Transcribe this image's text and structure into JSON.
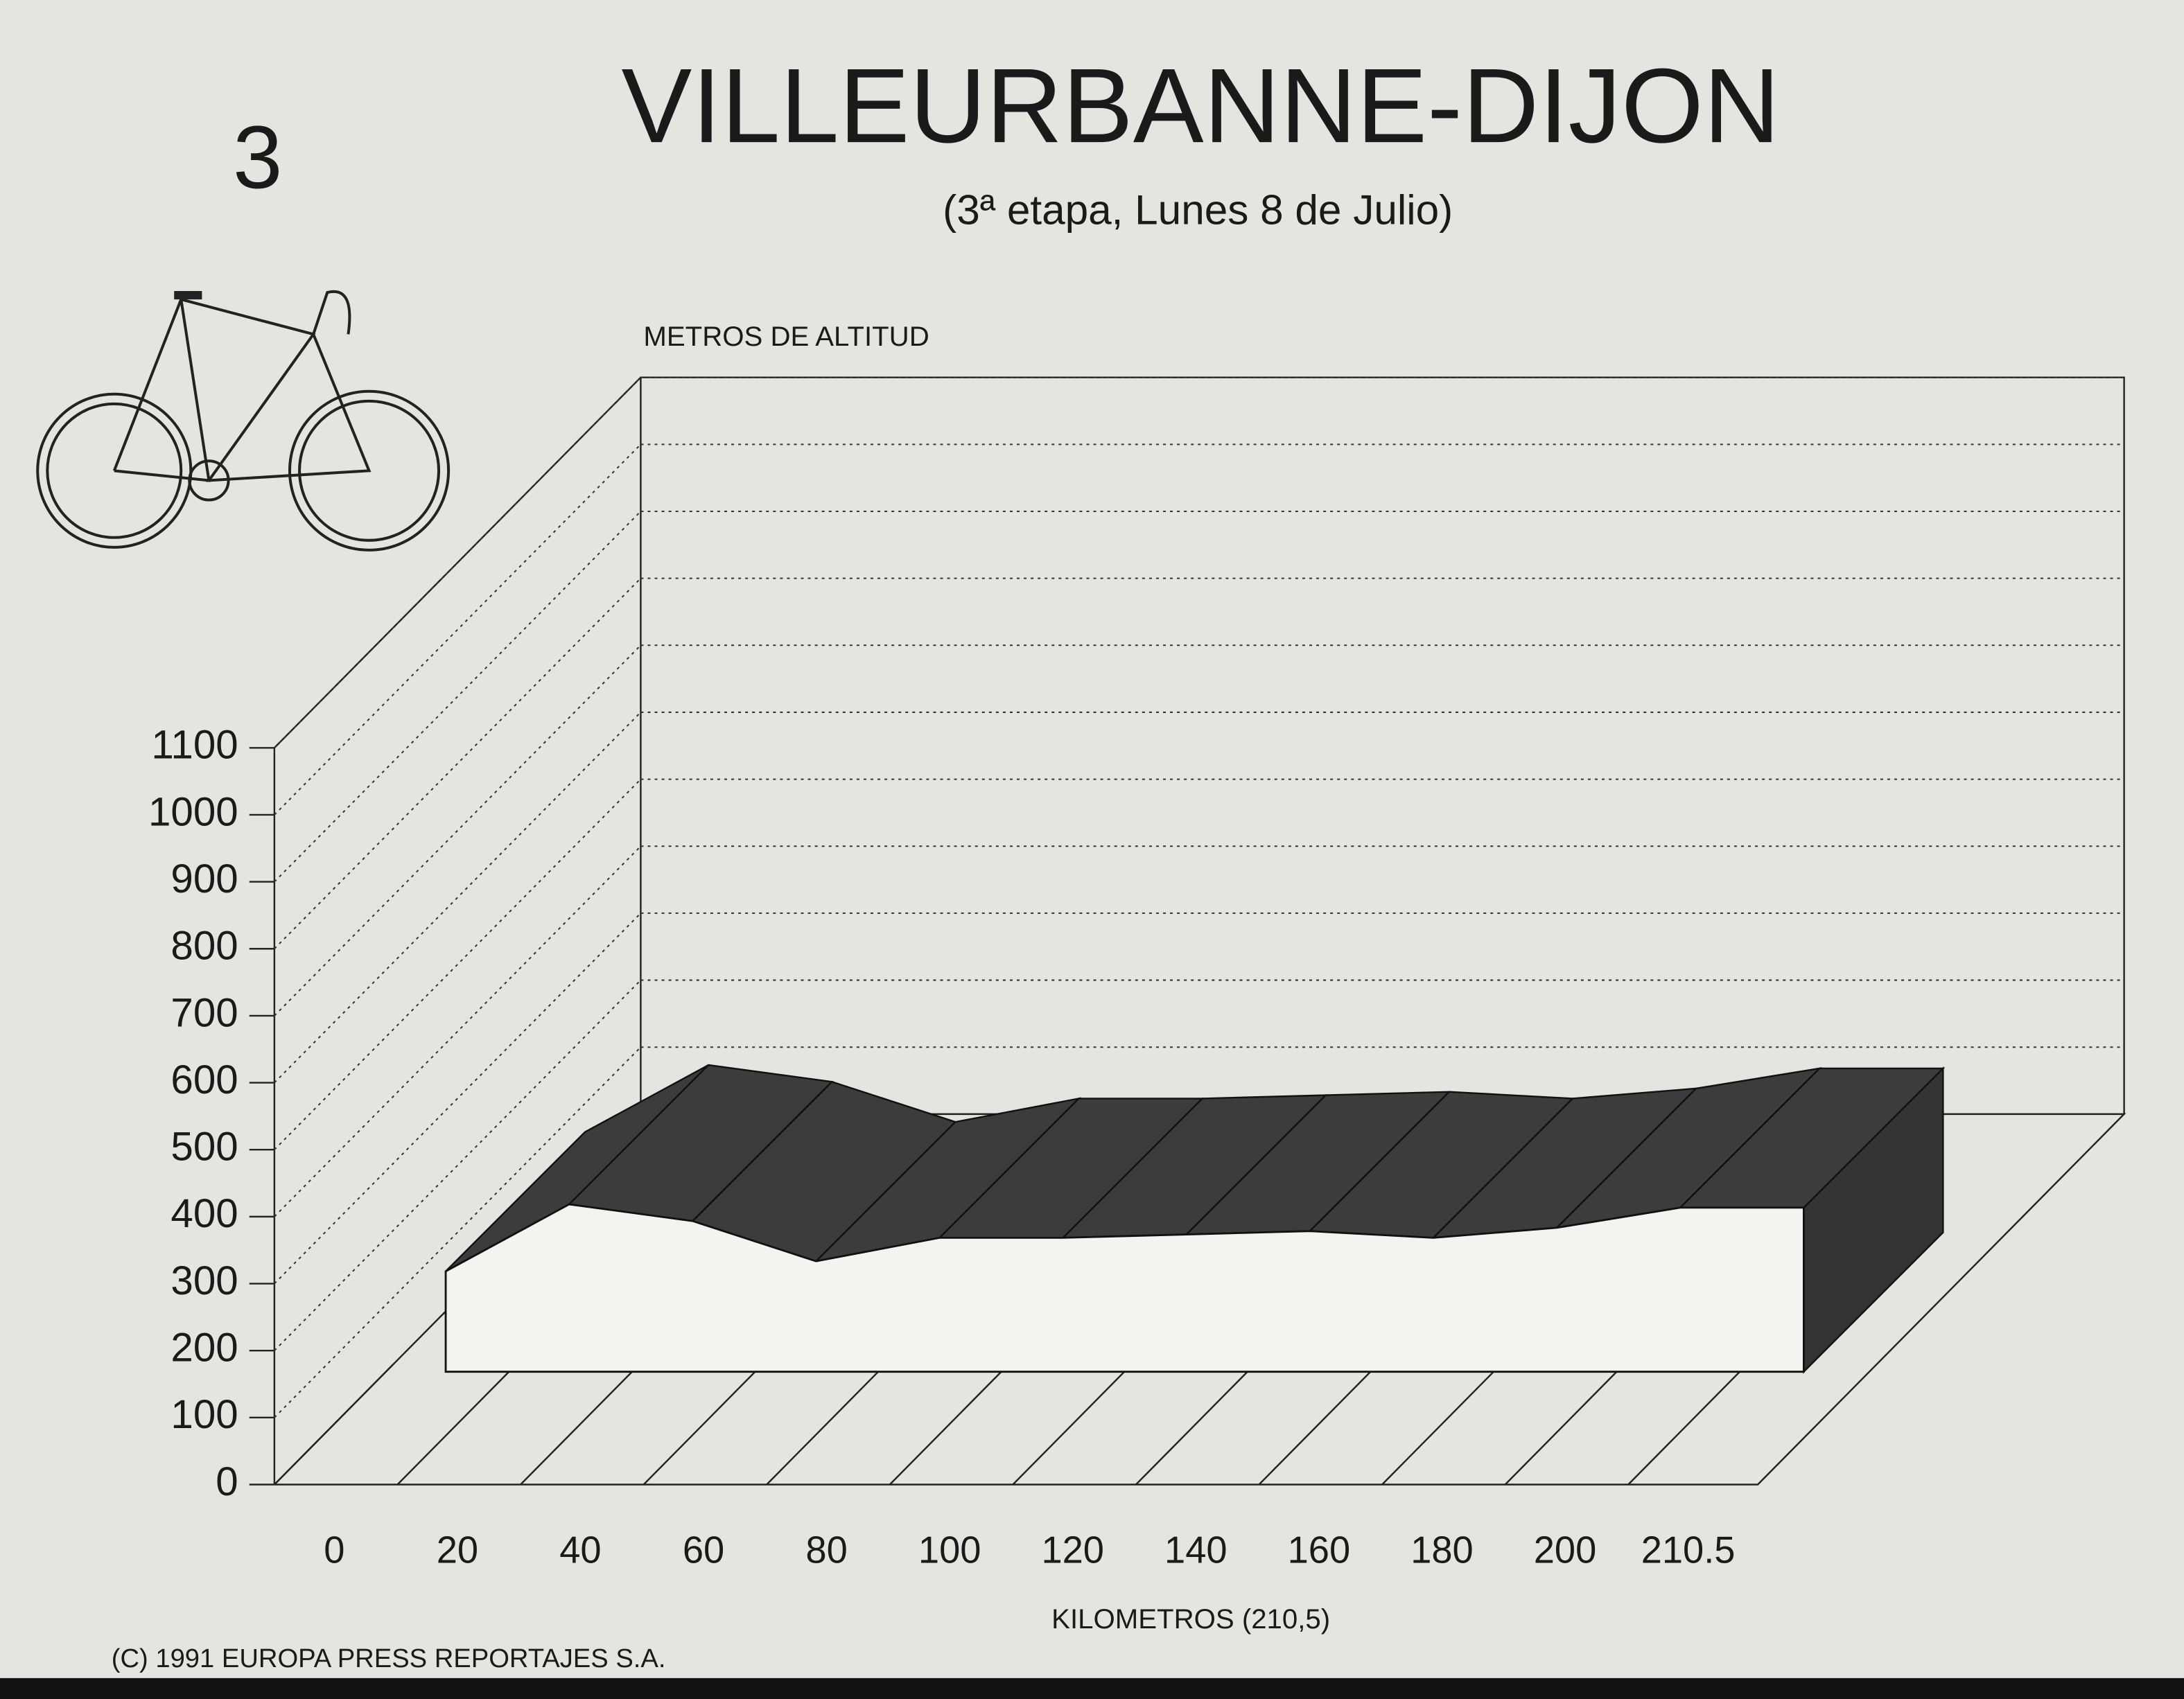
{
  "chart_data": {
    "type": "area3d",
    "stage": "3",
    "title": "VILLEURBANNE-DIJON",
    "subtitle": "(3ª etapa, Lunes 8 de Julio)",
    "y_label": "METROS DE ALTITUD",
    "x_label": "KILOMETROS (210,5)",
    "credit": "(C) 1991 EUROPA PRESS REPORTAJES S.A.",
    "categories": [
      0,
      20,
      40,
      60,
      80,
      100,
      120,
      140,
      160,
      180,
      200,
      210.5
    ],
    "values": [
      150,
      250,
      225,
      165,
      200,
      200,
      205,
      210,
      200,
      215,
      245,
      245
    ],
    "color": "#3c3c3c",
    "ylim": [
      0,
      1100
    ],
    "yticks": [
      0,
      100,
      200,
      300,
      400,
      500,
      600,
      700,
      800,
      900,
      1000,
      1100
    ],
    "grid": true
  }
}
